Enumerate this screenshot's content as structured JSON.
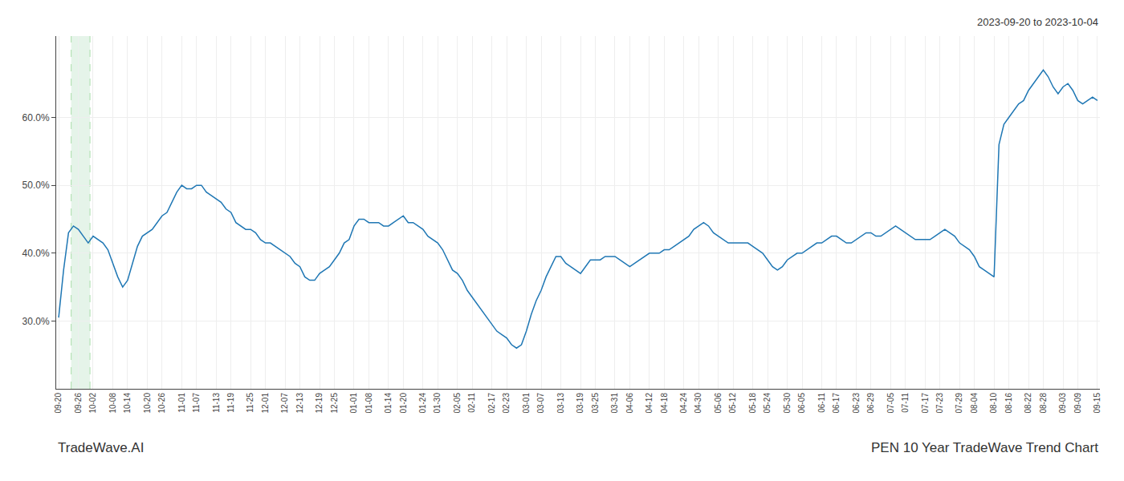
{
  "chart_data": {
    "type": "line",
    "title": "PEN 10 Year TradeWave Trend Chart",
    "subtitle": "2023-09-20 to 2023-10-04",
    "annotations": [
      "TradeWave.AI"
    ],
    "color": "#1f77b4",
    "grid": true,
    "ylim": [
      0.2,
      0.72
    ],
    "yticks": [
      {
        "value": 0.3,
        "label": "30.0%"
      },
      {
        "value": 0.4,
        "label": "40.0%"
      },
      {
        "value": 0.5,
        "label": "50.0%"
      },
      {
        "value": 0.6,
        "label": "60.0%"
      }
    ],
    "highlight": {
      "start": 2.544,
      "end": 6.36,
      "color": "#d4edda"
    },
    "categories": [
      "09-20",
      null,
      null,
      null,
      "09-26",
      null,
      null,
      "10-02",
      null,
      null,
      null,
      "10-08",
      null,
      null,
      "10-14",
      null,
      null,
      null,
      "10-20",
      null,
      null,
      "10-26",
      null,
      null,
      null,
      "11-01",
      null,
      null,
      "11-07",
      null,
      null,
      null,
      "11-13",
      null,
      null,
      "11-19",
      null,
      null,
      null,
      "11-25",
      null,
      null,
      "12-01",
      null,
      null,
      null,
      "12-07",
      null,
      null,
      "12-13",
      null,
      null,
      null,
      "12-19",
      null,
      null,
      "12-25",
      null,
      null,
      null,
      "01-01",
      null,
      null,
      "01-08",
      null,
      null,
      null,
      "01-14",
      null,
      null,
      "01-20",
      null,
      null,
      null,
      "01-24",
      null,
      null,
      "01-30",
      null,
      null,
      null,
      "02-05",
      null,
      null,
      "02-11",
      null,
      null,
      null,
      "02-17",
      null,
      null,
      "02-23",
      null,
      null,
      null,
      "03-01",
      null,
      null,
      "03-07",
      null,
      null,
      null,
      "03-13",
      null,
      null,
      null,
      "03-19",
      null,
      null,
      "03-25",
      null,
      null,
      null,
      "03-31",
      null,
      null,
      "04-06",
      null,
      null,
      null,
      "04-12",
      null,
      null,
      "04-18",
      null,
      null,
      null,
      "04-24",
      null,
      null,
      "04-30",
      null,
      null,
      null,
      "05-06",
      null,
      null,
      "05-12",
      null,
      null,
      null,
      "05-18",
      null,
      null,
      "05-24",
      null,
      null,
      null,
      "05-30",
      null,
      null,
      "06-05",
      null,
      null,
      null,
      "06-11",
      null,
      null,
      "06-17",
      null,
      null,
      null,
      "06-23",
      null,
      null,
      "06-29",
      null,
      null,
      null,
      "07-05",
      null,
      null,
      "07-11",
      null,
      null,
      null,
      "07-17",
      null,
      null,
      "07-23",
      null,
      null,
      null,
      "07-29",
      null,
      null,
      "08-04",
      null,
      null,
      null,
      "08-10",
      null,
      null,
      "08-16",
      null,
      null,
      null,
      "08-22",
      null,
      null,
      "08-28",
      null,
      null,
      null,
      "09-03",
      null,
      null,
      "09-09",
      null,
      null,
      null,
      "09-15"
    ],
    "values": [
      0.305,
      0.375,
      0.43,
      0.44,
      0.435,
      0.425,
      0.415,
      0.425,
      0.42,
      0.415,
      0.405,
      0.385,
      0.365,
      0.35,
      0.36,
      0.385,
      0.41,
      0.425,
      0.43,
      0.435,
      0.445,
      0.455,
      0.46,
      0.475,
      0.49,
      0.5,
      0.495,
      0.495,
      0.5,
      0.5,
      0.49,
      0.485,
      0.48,
      0.475,
      0.465,
      0.46,
      0.445,
      0.44,
      0.435,
      0.435,
      0.43,
      0.42,
      0.415,
      0.415,
      0.41,
      0.405,
      0.4,
      0.395,
      0.385,
      0.38,
      0.365,
      0.36,
      0.36,
      0.37,
      0.375,
      0.38,
      0.39,
      0.4,
      0.415,
      0.42,
      0.44,
      0.45,
      0.45,
      0.445,
      0.445,
      0.445,
      0.44,
      0.44,
      0.445,
      0.45,
      0.455,
      0.445,
      0.445,
      0.44,
      0.435,
      0.425,
      0.42,
      0.415,
      0.405,
      0.39,
      0.375,
      0.37,
      0.36,
      0.345,
      0.335,
      0.325,
      0.315,
      0.305,
      0.295,
      0.285,
      0.28,
      0.275,
      0.265,
      0.26,
      0.265,
      0.285,
      0.31,
      0.33,
      0.345,
      0.365,
      0.38,
      0.395,
      0.395,
      0.385,
      0.38,
      0.375,
      0.37,
      0.38,
      0.39,
      0.39,
      0.39,
      0.395,
      0.395,
      0.395,
      0.39,
      0.385,
      0.38,
      0.385,
      0.39,
      0.395,
      0.4,
      0.4,
      0.4,
      0.405,
      0.405,
      0.41,
      0.415,
      0.42,
      0.425,
      0.435,
      0.44,
      0.445,
      0.44,
      0.43,
      0.425,
      0.42,
      0.415,
      0.415,
      0.415,
      0.415,
      0.415,
      0.41,
      0.405,
      0.4,
      0.39,
      0.38,
      0.375,
      0.38,
      0.39,
      0.395,
      0.4,
      0.4,
      0.405,
      0.41,
      0.415,
      0.415,
      0.42,
      0.425,
      0.425,
      0.42,
      0.415,
      0.415,
      0.42,
      0.425,
      0.43,
      0.43,
      0.425,
      0.425,
      0.43,
      0.435,
      0.44,
      0.435,
      0.43,
      0.425,
      0.42,
      0.42,
      0.42,
      0.42,
      0.425,
      0.43,
      0.435,
      0.43,
      0.425,
      0.415,
      0.41,
      0.405,
      0.395,
      0.38,
      0.375,
      0.37,
      0.365,
      0.56,
      0.59,
      0.6,
      0.61,
      0.62,
      0.625,
      0.64,
      0.65,
      0.66,
      0.67,
      0.66,
      0.645,
      0.635,
      0.645,
      0.65,
      0.64,
      0.625,
      0.62,
      0.625,
      0.63,
      0.625
    ]
  }
}
